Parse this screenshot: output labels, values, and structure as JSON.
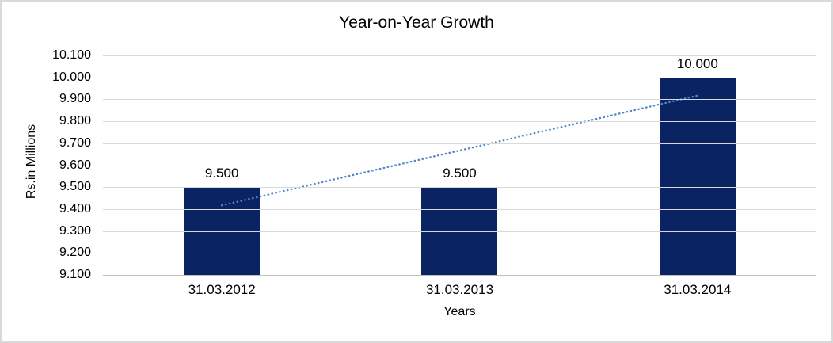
{
  "window": {
    "background": "#FFFFFF",
    "border_color": "#D9D9D9"
  },
  "chart_data": {
    "type": "bar",
    "title": "Year-on-Year Growth",
    "xlabel": "Years",
    "ylabel": "Rs.in Millions",
    "categories": [
      "31.03.2012",
      "31.03.2013",
      "31.03.2014"
    ],
    "values": [
      9500,
      9500,
      10000
    ],
    "data_labels": [
      "9.500",
      "9.500",
      "10.000"
    ],
    "ylim": [
      9100,
      10100
    ],
    "y_ticks": [
      {
        "value": 10100,
        "label": "10.100"
      },
      {
        "value": 10000,
        "label": "10.000"
      },
      {
        "value": 9900,
        "label": "9.900"
      },
      {
        "value": 9800,
        "label": "9.800"
      },
      {
        "value": 9700,
        "label": "9.700"
      },
      {
        "value": 9600,
        "label": "9.600"
      },
      {
        "value": 9500,
        "label": "9.500"
      },
      {
        "value": 9400,
        "label": "9.400"
      },
      {
        "value": 9300,
        "label": "9.300"
      },
      {
        "value": 9200,
        "label": "9.200"
      },
      {
        "value": 9100,
        "label": "9.100"
      }
    ],
    "grid": "horizontal",
    "legend": "none",
    "trendline": {
      "style": "dotted",
      "color": "#4F86C9",
      "points": [
        {
          "category_index": 0,
          "value": 9417
        },
        {
          "category_index": 2,
          "value": 9917
        }
      ]
    },
    "colors": {
      "bar": "#0A2463",
      "gridline": "#D9D9D9",
      "axis_line": "#BFBFBF",
      "text": "#000000"
    }
  }
}
